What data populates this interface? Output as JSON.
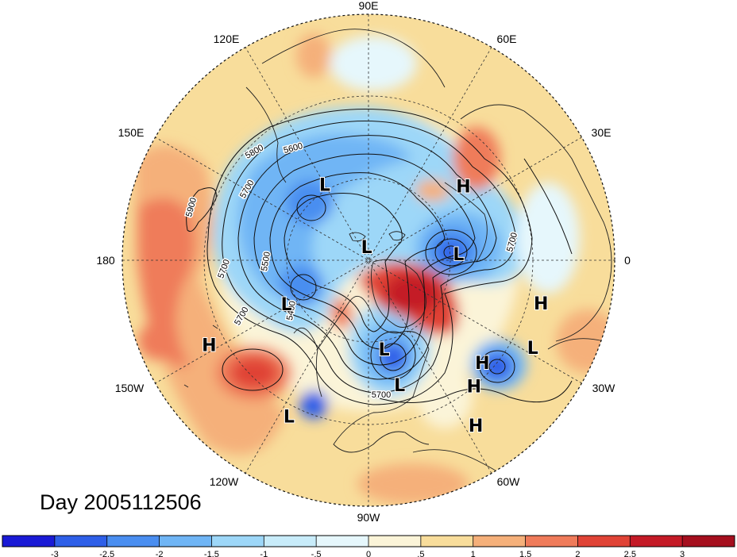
{
  "title": "Day 2005112506",
  "longitude_labels": [
    "90E",
    "60E",
    "30E",
    "0",
    "30W",
    "60W",
    "90W",
    "120W",
    "150W",
    "180",
    "150E",
    "120E"
  ],
  "systems": [
    {
      "type": "H",
      "lon": 38,
      "lat": 46
    },
    {
      "type": "H",
      "lon": -14,
      "lat": 25
    },
    {
      "type": "H",
      "lon": -42,
      "lat": 34
    },
    {
      "type": "H",
      "lon": -50,
      "lat": 30
    },
    {
      "type": "H",
      "lon": -57,
      "lat": 18
    },
    {
      "type": "H",
      "lon": -152,
      "lat": 24
    },
    {
      "type": "L",
      "lon": 120,
      "lat": 58
    },
    {
      "type": "L",
      "lon": 98,
      "lat": 85
    },
    {
      "type": "L",
      "lon": 4,
      "lat": 57
    },
    {
      "type": "L",
      "lon": -28,
      "lat": 22
    },
    {
      "type": "L",
      "lon": -152,
      "lat": 56
    },
    {
      "type": "L",
      "lon": -80,
      "lat": 57
    },
    {
      "type": "L",
      "lon": -76,
      "lat": 43
    },
    {
      "type": "L",
      "lon": -117,
      "lat": 26
    }
  ],
  "contour_labels": [
    "5900",
    "5800",
    "5600",
    "5700",
    "5500",
    "5400",
    "5700",
    "5700",
    "5700",
    "5700"
  ],
  "colorbar": {
    "ticks": [
      "-3",
      "-2.5",
      "-2",
      "-1.5",
      "-1",
      "-.5",
      "0",
      ".5",
      "1",
      "1.5",
      "2",
      "2.5",
      "3"
    ],
    "colors": [
      "#1a1ad6",
      "#2e5fe8",
      "#4a8ef0",
      "#6fb5f5",
      "#9dd7f8",
      "#c8ecfa",
      "#e6f7fc",
      "#fbf4d8",
      "#f8dd9b",
      "#f5b07a",
      "#ef7b5a",
      "#e04336",
      "#c41a26",
      "#a50f1e"
    ]
  },
  "colors": {
    "warm_background": "#f8dd9b",
    "cold_anomaly": "#4a8ef0",
    "warm_anomaly": "#ef7b5a",
    "strong_warm": "#d6212a",
    "strong_cold": "#2e5fe8",
    "coast": "#222222"
  }
}
